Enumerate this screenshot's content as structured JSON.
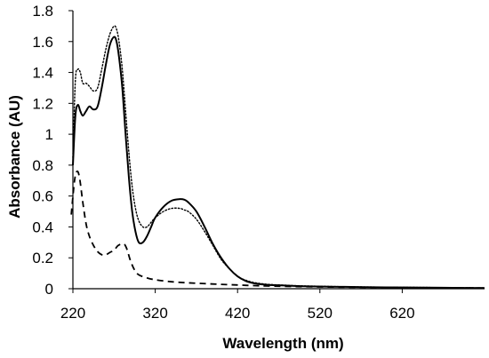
{
  "chart_data": {
    "type": "line",
    "title": "",
    "xlabel": "Wavelength (nm)",
    "ylabel": "Absorbance (AU)",
    "xlim": [
      220,
      720
    ],
    "ylim": [
      0,
      1.8
    ],
    "x_ticks": [
      220,
      320,
      420,
      520,
      620
    ],
    "x_tick_labels": [
      "220",
      "320",
      "420",
      "520",
      "620"
    ],
    "y_ticks": [
      0,
      0.2,
      0.4,
      0.6,
      0.8,
      1,
      1.2,
      1.4,
      1.6,
      1.8
    ],
    "y_tick_labels": [
      "0",
      "0.2",
      "0.4",
      "0.6",
      "0.8",
      "1",
      "1.2",
      "1.4",
      "1.6",
      "1.8"
    ],
    "grid": false,
    "legend": "none",
    "series": [
      {
        "style": "solid",
        "color": "#000000",
        "x": [
          220,
          223,
          226,
          229,
          232,
          236,
          240,
          245,
          250,
          255,
          260,
          265,
          270,
          273,
          276,
          280,
          284,
          288,
          292,
          296,
          300,
          305,
          310,
          315,
          320,
          330,
          340,
          350,
          355,
          360,
          370,
          380,
          390,
          400,
          410,
          420,
          430,
          440,
          450,
          460,
          480,
          500,
          550,
          600,
          650,
          700,
          720
        ],
        "y": [
          0.8,
          1.12,
          1.19,
          1.15,
          1.12,
          1.15,
          1.18,
          1.16,
          1.18,
          1.3,
          1.45,
          1.58,
          1.63,
          1.6,
          1.5,
          1.3,
          1.0,
          0.72,
          0.5,
          0.37,
          0.3,
          0.3,
          0.34,
          0.4,
          0.46,
          0.53,
          0.57,
          0.58,
          0.577,
          0.56,
          0.5,
          0.4,
          0.29,
          0.2,
          0.13,
          0.08,
          0.05,
          0.035,
          0.028,
          0.024,
          0.02,
          0.016,
          0.012,
          0.009,
          0.007,
          0.005,
          0.004
        ]
      },
      {
        "style": "dotted",
        "color": "#000000",
        "x": [
          220,
          223,
          226,
          229,
          232,
          236,
          240,
          245,
          250,
          255,
          260,
          265,
          270,
          273,
          276,
          280,
          284,
          288,
          292,
          296,
          300,
          305,
          310,
          315,
          320,
          330,
          340,
          350,
          355,
          360,
          370,
          380,
          390,
          400,
          410,
          420,
          430,
          440,
          450,
          460,
          480,
          500,
          550,
          600,
          650,
          700,
          720
        ],
        "y": [
          0.85,
          1.35,
          1.42,
          1.4,
          1.33,
          1.33,
          1.31,
          1.28,
          1.3,
          1.42,
          1.55,
          1.65,
          1.7,
          1.68,
          1.6,
          1.42,
          1.15,
          0.88,
          0.66,
          0.52,
          0.44,
          0.4,
          0.4,
          0.43,
          0.46,
          0.5,
          0.52,
          0.52,
          0.51,
          0.5,
          0.45,
          0.37,
          0.28,
          0.19,
          0.13,
          0.08,
          0.055,
          0.04,
          0.032,
          0.027,
          0.022,
          0.018,
          0.013,
          0.01,
          0.008,
          0.006,
          0.005
        ]
      },
      {
        "style": "dashed",
        "color": "#000000",
        "x": [
          218,
          222,
          225,
          228,
          232,
          236,
          240,
          245,
          250,
          255,
          260,
          265,
          270,
          275,
          280,
          283,
          286,
          290,
          295,
          300,
          310,
          320,
          340,
          360,
          380,
          400,
          420,
          440,
          460,
          500,
          550,
          600,
          650,
          700,
          720
        ],
        "y": [
          0.48,
          0.7,
          0.76,
          0.72,
          0.56,
          0.42,
          0.34,
          0.28,
          0.24,
          0.22,
          0.22,
          0.235,
          0.25,
          0.28,
          0.29,
          0.285,
          0.25,
          0.18,
          0.12,
          0.09,
          0.07,
          0.058,
          0.045,
          0.038,
          0.033,
          0.028,
          0.024,
          0.02,
          0.017,
          0.013,
          0.01,
          0.008,
          0.006,
          0.005,
          0.004
        ]
      }
    ]
  }
}
